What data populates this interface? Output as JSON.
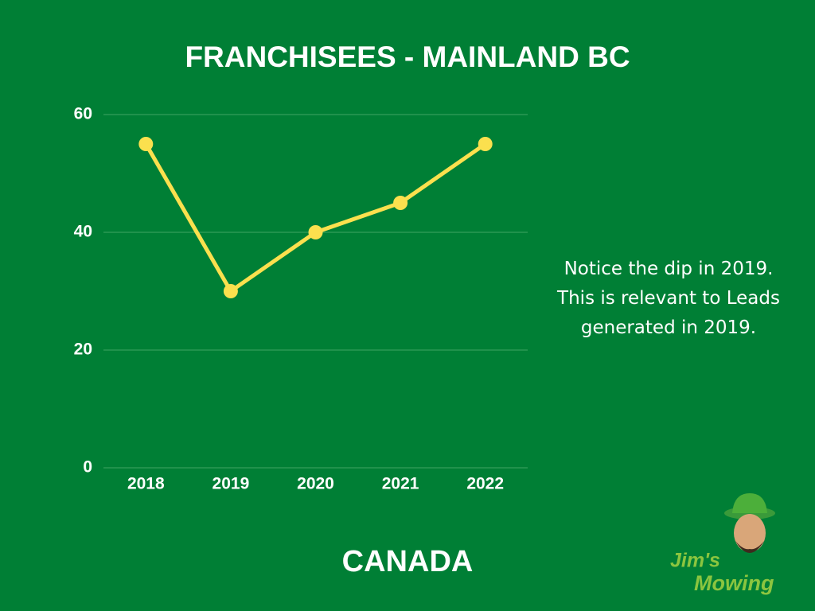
{
  "chart_data": {
    "type": "line",
    "title": "FRANCHISEES - MAINLAND BC",
    "categories": [
      "2018",
      "2019",
      "2020",
      "2021",
      "2022"
    ],
    "series": [
      {
        "name": "Franchisees",
        "color": "#fbe04e",
        "values": [
          55,
          30,
          40,
          45,
          55
        ]
      }
    ],
    "ylim": [
      0,
      60
    ],
    "yticks": [
      0,
      20,
      40,
      60
    ],
    "grid": true,
    "grid_color": "#3fa463",
    "annotation": "Notice the dip in 2019. This is relevant to Leads generated in 2019."
  },
  "footer": "CANADA",
  "logo": {
    "line1": "Jim's",
    "line2": "Mowing"
  }
}
